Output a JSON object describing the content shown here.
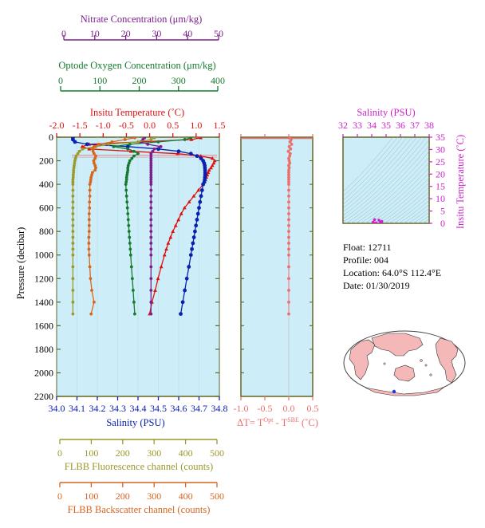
{
  "colors": {
    "nitrate": "#7b1f8c",
    "oxygen": "#157a2e",
    "temperature": "#e01010",
    "salinity": "#0a20b0",
    "fluorescence": "#9a9a2a",
    "backscatter": "#d9651d",
    "delta": "#ee6e6e",
    "ts": "#cc22cc",
    "panel": "#cdeef8",
    "frame": "#666622"
  },
  "info": {
    "float": "Float:  12711",
    "profile": "Profile:  004",
    "location": "Location:  64.0°S  112.4°E",
    "date": "Date:  01/30/2019"
  },
  "chart_data": [
    {
      "type": "line",
      "name": "main-profile",
      "ylabel": "Pressure (decibar)",
      "ylim": [
        0,
        2200
      ],
      "yticks": [
        "0",
        "200",
        "400",
        "600",
        "800",
        "1000",
        "1200",
        "1400",
        "1600",
        "1800",
        "2000",
        "2200"
      ],
      "axes": {
        "nitrate": {
          "title": "Nitrate Concentration (μm/kg)",
          "range": [
            0,
            50
          ],
          "ticks": [
            "0",
            "10",
            "20",
            "30",
            "40",
            "50"
          ]
        },
        "oxygen": {
          "title": "Optode Oxygen Concentration (μm/kg)",
          "range": [
            0,
            400
          ],
          "ticks": [
            "0",
            "100",
            "200",
            "300",
            "400"
          ]
        },
        "temperature": {
          "title": "Insitu Temperature (˚C)",
          "range": [
            -2.0,
            1.5
          ],
          "ticks": [
            "-2.0",
            "-1.5",
            "-1.0",
            "-0.5",
            "0.0",
            "0.5",
            "1.0",
            "1.5"
          ]
        },
        "salinity": {
          "title": "Salinity (PSU)",
          "range": [
            34.0,
            34.8
          ],
          "ticks": [
            "34.0",
            "34.1",
            "34.2",
            "34.3",
            "34.4",
            "34.5",
            "34.6",
            "34.7",
            "34.8"
          ]
        },
        "fluorescence": {
          "title": "FLBB Fluorescence channel (counts)",
          "range": [
            0,
            500
          ],
          "ticks": [
            "0",
            "100",
            "200",
            "300",
            "400",
            "500"
          ]
        },
        "backscatter": {
          "title": "FLBB Backscatter channel (counts)",
          "range": [
            0,
            500
          ],
          "ticks": [
            "0",
            "100",
            "200",
            "300",
            "400",
            "500"
          ]
        }
      },
      "series": [
        {
          "key": "temperature",
          "marker": "triangle",
          "p": [
            5,
            20,
            40,
            60,
            80,
            100,
            120,
            140,
            160,
            180,
            200,
            220,
            240,
            260,
            280,
            300,
            320,
            340,
            360,
            380,
            400,
            450,
            500,
            550,
            600,
            650,
            700,
            750,
            800,
            850,
            900,
            950,
            1000,
            1100,
            1200,
            1300,
            1400,
            1500
          ],
          "v": [
            1.1,
            0.9,
            -0.2,
            -1.3,
            -1.45,
            -1.3,
            -0.4,
            0.6,
            1.1,
            1.35,
            1.4,
            1.38,
            1.35,
            1.32,
            1.28,
            1.26,
            1.24,
            1.22,
            1.2,
            1.18,
            1.15,
            1.05,
            0.95,
            0.85,
            0.75,
            0.68,
            0.62,
            0.56,
            0.5,
            0.45,
            0.4,
            0.36,
            0.32,
            0.25,
            0.18,
            0.12,
            0.05,
            0.0
          ]
        },
        {
          "key": "salinity",
          "marker": "circle",
          "p": [
            5,
            20,
            40,
            60,
            80,
            100,
            120,
            140,
            160,
            180,
            200,
            220,
            240,
            260,
            280,
            300,
            320,
            340,
            360,
            380,
            400,
            450,
            500,
            550,
            600,
            650,
            700,
            750,
            800,
            850,
            900,
            950,
            1000,
            1100,
            1200,
            1300,
            1400,
            1500
          ],
          "v": [
            34.08,
            34.08,
            34.09,
            34.15,
            34.35,
            34.5,
            34.6,
            34.66,
            34.69,
            34.71,
            34.72,
            34.725,
            34.728,
            34.729,
            34.73,
            34.73,
            34.73,
            34.729,
            34.728,
            34.726,
            34.72,
            34.715,
            34.71,
            34.705,
            34.7,
            34.695,
            34.69,
            34.685,
            34.68,
            34.675,
            34.67,
            34.665,
            34.66,
            34.65,
            34.64,
            34.63,
            34.62,
            34.61
          ]
        },
        {
          "key": "oxygen",
          "marker": "circle",
          "p": [
            5,
            20,
            40,
            60,
            80,
            100,
            120,
            140,
            160,
            180,
            200,
            220,
            240,
            260,
            280,
            300,
            320,
            340,
            360,
            380,
            400,
            450,
            500,
            550,
            600,
            650,
            700,
            750,
            800,
            850,
            900,
            950,
            1000,
            1100,
            1200,
            1300,
            1400,
            1500
          ],
          "v": [
            330,
            315,
            250,
            180,
            140,
            175,
            190,
            200,
            190,
            185,
            180,
            178,
            176,
            175,
            175,
            174,
            173,
            172,
            172,
            171,
            170,
            171,
            172,
            173,
            174,
            175,
            176,
            177,
            178,
            179,
            180,
            181,
            182,
            184,
            186,
            188,
            190,
            192
          ]
        },
        {
          "key": "nitrate",
          "marker": "circle",
          "p": [
            5,
            20,
            40,
            60,
            80,
            100,
            120,
            140,
            160,
            180,
            200,
            220,
            240,
            260,
            280,
            300,
            320,
            340,
            360,
            380,
            400,
            450,
            500,
            550,
            600,
            650,
            700,
            750,
            800,
            850,
            900,
            950,
            1000,
            1100,
            1200,
            1300,
            1400,
            1500
          ],
          "v": [
            27,
            26.5,
            26,
            28,
            32,
            30,
            29.5,
            29,
            29,
            29,
            29,
            29,
            29,
            29,
            29,
            29,
            29,
            29,
            29,
            29,
            29,
            29,
            29,
            29,
            29,
            29,
            29,
            29,
            29,
            29,
            29,
            29,
            29,
            29,
            29,
            29,
            29,
            29
          ]
        },
        {
          "key": "fluorescence",
          "marker": "circle",
          "p": [
            5,
            20,
            40,
            60,
            80,
            100,
            120,
            140,
            160,
            180,
            200,
            220,
            240,
            260,
            280,
            300,
            320,
            340,
            360,
            380,
            400,
            450,
            500,
            550,
            600,
            650,
            700,
            750,
            800,
            850,
            900,
            950,
            1000,
            1100,
            1200,
            1300,
            1400,
            1500
          ],
          "v": [
            300,
            290,
            250,
            160,
            120,
            80,
            70,
            65,
            60,
            58,
            56,
            55,
            54,
            53,
            52,
            52,
            51,
            51,
            50,
            50,
            50,
            50,
            50,
            50,
            50,
            50,
            50,
            50,
            50,
            50,
            50,
            50,
            50,
            50,
            50,
            50,
            50,
            50
          ]
        },
        {
          "key": "backscatter",
          "marker": "circle",
          "p": [
            5,
            20,
            40,
            60,
            80,
            100,
            120,
            140,
            160,
            180,
            200,
            220,
            240,
            260,
            280,
            300,
            320,
            340,
            360,
            380,
            400,
            450,
            500,
            550,
            600,
            650,
            700,
            750,
            800,
            850,
            900,
            950,
            1000,
            1100,
            1200,
            1300,
            1400,
            1500
          ],
          "v": [
            240,
            210,
            170,
            130,
            115,
            110,
            112,
            115,
            120,
            118,
            114,
            115,
            118,
            120,
            118,
            110,
            108,
            106,
            105,
            104,
            102,
            102,
            102,
            101,
            101,
            100,
            100,
            100,
            100,
            99,
            99,
            99,
            100,
            102,
            104,
            108,
            115,
            106
          ]
        }
      ],
      "sample_lines_p": [
        150,
        160,
        170
      ]
    },
    {
      "type": "scatter",
      "name": "delta-t",
      "xlabel": "ΔT= T",
      "xlabel_sup1": "Opt",
      "xlabel_mid": " - T",
      "xlabel_sup2": "SBE",
      "xlabel_end": " (˚C)",
      "xlim": [
        -1.0,
        0.5
      ],
      "xticks": [
        "-1.0",
        "-0.5",
        "0.0",
        "0.5"
      ],
      "p": [
        5,
        20,
        40,
        60,
        80,
        100,
        120,
        140,
        160,
        180,
        200,
        220,
        240,
        260,
        280,
        300,
        320,
        340,
        360,
        380,
        400,
        450,
        500,
        550,
        600,
        650,
        700,
        750,
        800,
        850,
        900,
        950,
        1000,
        1100,
        1200,
        1300,
        1400,
        1500
      ],
      "v": [
        0.02,
        0.05,
        0.03,
        0.06,
        0.01,
        0.04,
        -0.01,
        0.03,
        0.02,
        0.0,
        0.01,
        0.02,
        0.0,
        0.01,
        0.0,
        0.0,
        0.0,
        0.0,
        0.0,
        0.0,
        0.0,
        0.0,
        0.0,
        0.0,
        0.0,
        0.0,
        0.0,
        0.0,
        0.0,
        0.0,
        0.0,
        0.0,
        0.0,
        0.0,
        0.0,
        0.0,
        0.0,
        0.0
      ]
    },
    {
      "type": "scatter",
      "name": "ts-diagram",
      "title": "Salinity (PSU)",
      "ylabel": "Insitu Temperature (˚C)",
      "xlim": [
        32,
        38
      ],
      "ylim": [
        0,
        35
      ],
      "xticks": [
        "32",
        "33",
        "34",
        "35",
        "36",
        "37",
        "38"
      ],
      "yticks": [
        "0",
        "5",
        "10",
        "15",
        "20",
        "25",
        "30",
        "35"
      ],
      "points_s": [
        34.1,
        34.2,
        34.3,
        34.5,
        34.6,
        34.7,
        34.7
      ],
      "points_t": [
        0.5,
        1.5,
        0.2,
        1.3,
        0.4,
        0.8,
        0.1
      ]
    }
  ]
}
